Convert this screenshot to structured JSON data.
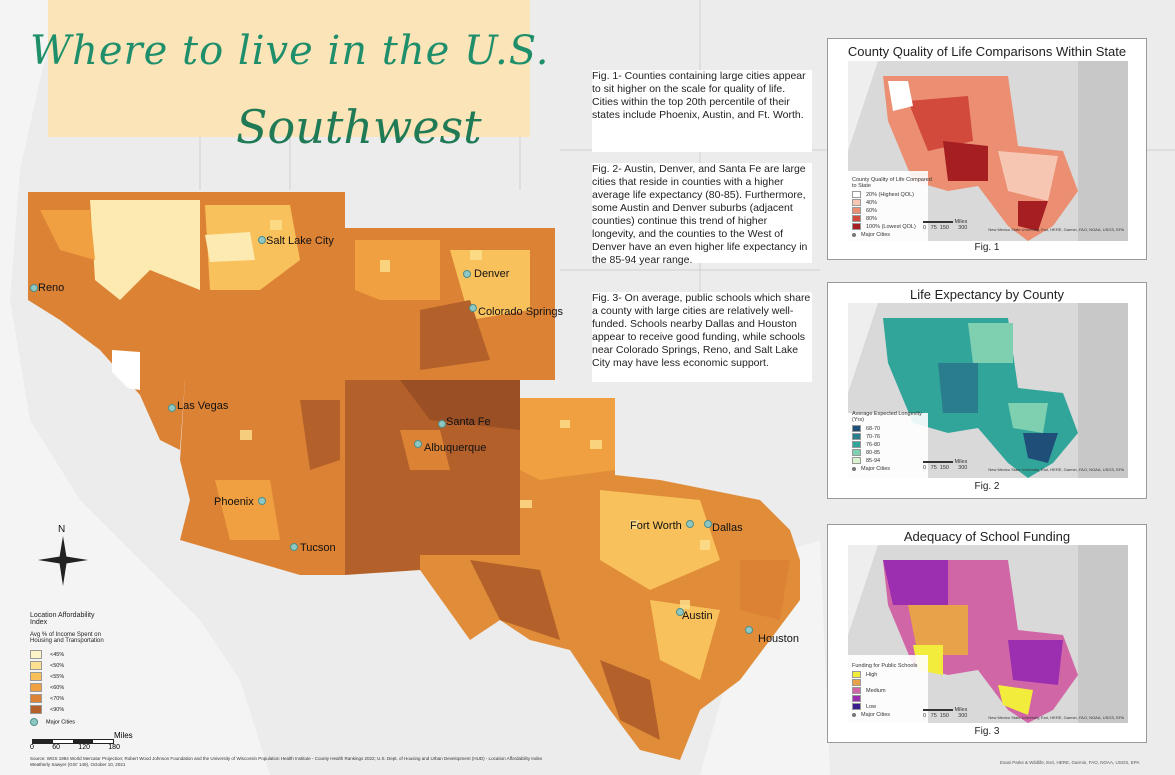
{
  "title": {
    "line1": "Where to live in the U.S.",
    "line2": "Southwest"
  },
  "cities": [
    {
      "name": "Reno"
    },
    {
      "name": "Salt Lake City"
    },
    {
      "name": "Denver"
    },
    {
      "name": "Colorado Springs"
    },
    {
      "name": "Las Vegas"
    },
    {
      "name": "Santa Fe"
    },
    {
      "name": "Albuquerque"
    },
    {
      "name": "Phoenix"
    },
    {
      "name": "Tucson"
    },
    {
      "name": "Fort Worth"
    },
    {
      "name": "Dallas"
    },
    {
      "name": "Austin"
    },
    {
      "name": "Houston"
    }
  ],
  "legend": {
    "title": "Location Affordability\nIndex",
    "subtitle": "Avg % of Income Spent on\nHousing and Transportation",
    "classes": [
      {
        "label": "<45%",
        "color": "#fdf3c8"
      },
      {
        "label": "<50%",
        "color": "#fde08f"
      },
      {
        "label": "<55%",
        "color": "#f9c15c"
      },
      {
        "label": "<60%",
        "color": "#f0a040"
      },
      {
        "label": "<70%",
        "color": "#dc8234"
      },
      {
        "label": "<90%",
        "color": "#b3602b"
      }
    ],
    "major_cities": "Major Cities"
  },
  "scale": {
    "unit": "Miles",
    "ticks": [
      "0",
      "60",
      "120",
      "180"
    ]
  },
  "compass": "N",
  "footnote": {
    "line1": "Source: WGS 1984 World Mercator Projection; Robert Wood Johnson Foundation and the University of Wisconsin Population Health Institute - County Health Rankings 2022; U.S. Dept. of Housing and Urban Development (HUD) - Location Affordability Index",
    "line2": "Weatherly Sawyer (GIS' 149), October 10, 2021"
  },
  "notes": {
    "fig1": "Fig. 1- Counties containing large cities appear to sit higher on the scale for quality of life. Cities within the top 20th percentile of their states include Phoenix, Austin, and Ft. Worth.",
    "fig2": "Fig. 2- Austin, Denver, and Santa Fe are large cities that reside in counties with a higher average life expectancy (80-85). Furthermore, some Austin and Denver suburbs (adjacent counties) continue this trend of higher longevity, and the counties to the West of Denver have an even higher life expectancy in the 85-94 year range.",
    "fig3": "Fig. 3- On average, public schools which share a county with large cities are relatively well-funded. Schools nearby Dallas and Houston appear to receive good funding, while schools near Colorado Springs, Reno, and Salt Lake City may have less economic support."
  },
  "insets": [
    {
      "title": "County Quality of Life Comparisons Within State",
      "label": "Fig. 1",
      "legend_title": "County Quality of Life Compared\nto State",
      "classes": [
        {
          "label": "20% (Highest QOL)",
          "color": "#ffffff"
        },
        {
          "label": "40%",
          "color": "#f7c6b2"
        },
        {
          "label": "60%",
          "color": "#eb8e72"
        },
        {
          "label": "80%",
          "color": "#d24a3c"
        },
        {
          "label": "100% (Lowest QOL)",
          "color": "#a51e22"
        }
      ],
      "major": "Major Cities",
      "scale_unit": "Miles",
      "scale_ticks": "0   75  150      300",
      "credit": "New Mexico State University, Esri, HERE, Garmin, FAO, NOAA, USGS, EPA"
    },
    {
      "title": "Life Expectancy by County",
      "label": "Fig. 2",
      "legend_title": "Average Expected Longevity\n(Yrs)",
      "classes": [
        {
          "label": "68-70",
          "color": "#1f4e79"
        },
        {
          "label": "70-76",
          "color": "#2a7d8c"
        },
        {
          "label": "76-80",
          "color": "#31a59a"
        },
        {
          "label": "80-85",
          "color": "#7fd0b1"
        },
        {
          "label": "85-94",
          "color": "#d9f2d0"
        }
      ],
      "major": "Major Cities",
      "scale_unit": "Miles",
      "scale_ticks": "0   75  150      300",
      "credit": "New Mexico State University, Esri, HERE, Garmin, FAO, NOAA, USGS, EPA"
    },
    {
      "title": "Adequacy of School Funding",
      "label": "Fig. 3",
      "legend_title": "Funding for Public Schools",
      "classes": [
        {
          "label": "High",
          "color": "#f2ec3c"
        },
        {
          "label": "",
          "color": "#e8a24a"
        },
        {
          "label": "Medium",
          "color": "#d166a6"
        },
        {
          "label": "",
          "color": "#9b2fb0"
        },
        {
          "label": "Low",
          "color": "#3b1f8f"
        }
      ],
      "major": "Major Cities",
      "scale_unit": "Miles",
      "scale_ticks": "0   75  150      300",
      "credit": "New Mexico State University, Esri, HERE, Garmin, FAO, NOAA, USGS, EPA"
    }
  ],
  "bottom_credit": "Esasi Parks & Wildlife, Esri, HERE, Garmin, FAO, NOAA, USGS, EPA"
}
